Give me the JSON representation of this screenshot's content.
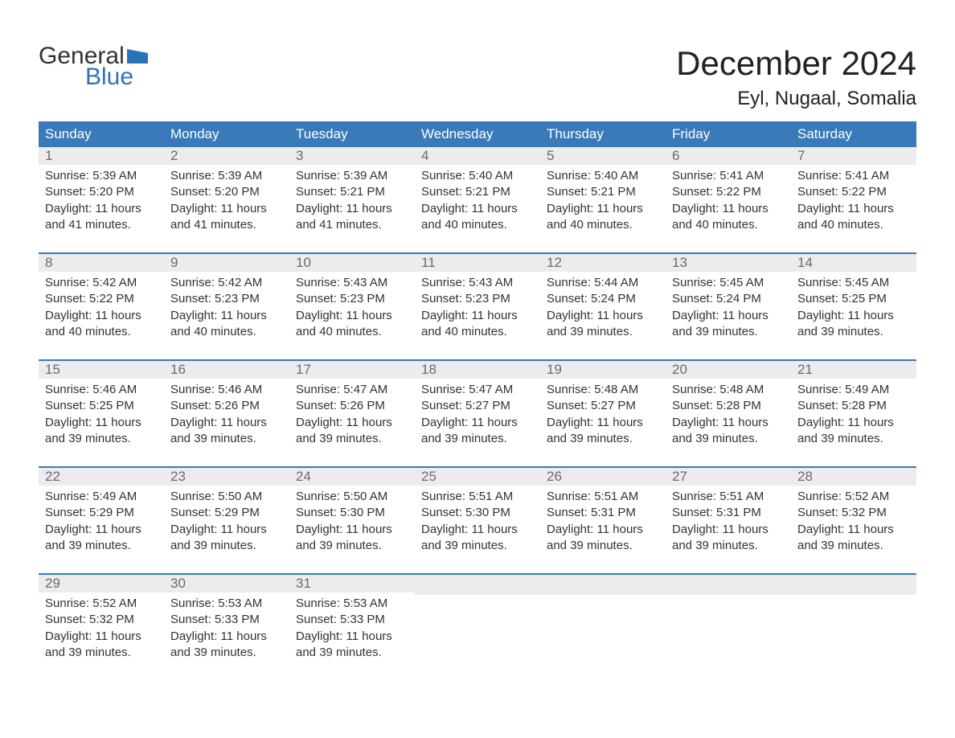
{
  "logo": {
    "word1": "General",
    "word2": "Blue",
    "flag_color": "#2b73b8",
    "text_color": "#333333"
  },
  "header": {
    "month_title": "December 2024",
    "location": "Eyl, Nugaal, Somalia"
  },
  "styling": {
    "header_bg": "#3a7ab8",
    "header_text": "#ffffff",
    "daynum_bg": "#ececec",
    "daynum_color": "#6b6b6b",
    "body_text": "#333333",
    "week_border": "#3a7ab8",
    "page_bg": "#ffffff",
    "title_fontsize": 42,
    "location_fontsize": 24,
    "header_fontsize": 17,
    "detail_fontsize": 15
  },
  "day_labels": [
    "Sunday",
    "Monday",
    "Tuesday",
    "Wednesday",
    "Thursday",
    "Friday",
    "Saturday"
  ],
  "weeks": [
    [
      {
        "n": "1",
        "sr": "Sunrise: 5:39 AM",
        "ss": "Sunset: 5:20 PM",
        "d1": "Daylight: 11 hours",
        "d2": "and 41 minutes."
      },
      {
        "n": "2",
        "sr": "Sunrise: 5:39 AM",
        "ss": "Sunset: 5:20 PM",
        "d1": "Daylight: 11 hours",
        "d2": "and 41 minutes."
      },
      {
        "n": "3",
        "sr": "Sunrise: 5:39 AM",
        "ss": "Sunset: 5:21 PM",
        "d1": "Daylight: 11 hours",
        "d2": "and 41 minutes."
      },
      {
        "n": "4",
        "sr": "Sunrise: 5:40 AM",
        "ss": "Sunset: 5:21 PM",
        "d1": "Daylight: 11 hours",
        "d2": "and 40 minutes."
      },
      {
        "n": "5",
        "sr": "Sunrise: 5:40 AM",
        "ss": "Sunset: 5:21 PM",
        "d1": "Daylight: 11 hours",
        "d2": "and 40 minutes."
      },
      {
        "n": "6",
        "sr": "Sunrise: 5:41 AM",
        "ss": "Sunset: 5:22 PM",
        "d1": "Daylight: 11 hours",
        "d2": "and 40 minutes."
      },
      {
        "n": "7",
        "sr": "Sunrise: 5:41 AM",
        "ss": "Sunset: 5:22 PM",
        "d1": "Daylight: 11 hours",
        "d2": "and 40 minutes."
      }
    ],
    [
      {
        "n": "8",
        "sr": "Sunrise: 5:42 AM",
        "ss": "Sunset: 5:22 PM",
        "d1": "Daylight: 11 hours",
        "d2": "and 40 minutes."
      },
      {
        "n": "9",
        "sr": "Sunrise: 5:42 AM",
        "ss": "Sunset: 5:23 PM",
        "d1": "Daylight: 11 hours",
        "d2": "and 40 minutes."
      },
      {
        "n": "10",
        "sr": "Sunrise: 5:43 AM",
        "ss": "Sunset: 5:23 PM",
        "d1": "Daylight: 11 hours",
        "d2": "and 40 minutes."
      },
      {
        "n": "11",
        "sr": "Sunrise: 5:43 AM",
        "ss": "Sunset: 5:23 PM",
        "d1": "Daylight: 11 hours",
        "d2": "and 40 minutes."
      },
      {
        "n": "12",
        "sr": "Sunrise: 5:44 AM",
        "ss": "Sunset: 5:24 PM",
        "d1": "Daylight: 11 hours",
        "d2": "and 39 minutes."
      },
      {
        "n": "13",
        "sr": "Sunrise: 5:45 AM",
        "ss": "Sunset: 5:24 PM",
        "d1": "Daylight: 11 hours",
        "d2": "and 39 minutes."
      },
      {
        "n": "14",
        "sr": "Sunrise: 5:45 AM",
        "ss": "Sunset: 5:25 PM",
        "d1": "Daylight: 11 hours",
        "d2": "and 39 minutes."
      }
    ],
    [
      {
        "n": "15",
        "sr": "Sunrise: 5:46 AM",
        "ss": "Sunset: 5:25 PM",
        "d1": "Daylight: 11 hours",
        "d2": "and 39 minutes."
      },
      {
        "n": "16",
        "sr": "Sunrise: 5:46 AM",
        "ss": "Sunset: 5:26 PM",
        "d1": "Daylight: 11 hours",
        "d2": "and 39 minutes."
      },
      {
        "n": "17",
        "sr": "Sunrise: 5:47 AM",
        "ss": "Sunset: 5:26 PM",
        "d1": "Daylight: 11 hours",
        "d2": "and 39 minutes."
      },
      {
        "n": "18",
        "sr": "Sunrise: 5:47 AM",
        "ss": "Sunset: 5:27 PM",
        "d1": "Daylight: 11 hours",
        "d2": "and 39 minutes."
      },
      {
        "n": "19",
        "sr": "Sunrise: 5:48 AM",
        "ss": "Sunset: 5:27 PM",
        "d1": "Daylight: 11 hours",
        "d2": "and 39 minutes."
      },
      {
        "n": "20",
        "sr": "Sunrise: 5:48 AM",
        "ss": "Sunset: 5:28 PM",
        "d1": "Daylight: 11 hours",
        "d2": "and 39 minutes."
      },
      {
        "n": "21",
        "sr": "Sunrise: 5:49 AM",
        "ss": "Sunset: 5:28 PM",
        "d1": "Daylight: 11 hours",
        "d2": "and 39 minutes."
      }
    ],
    [
      {
        "n": "22",
        "sr": "Sunrise: 5:49 AM",
        "ss": "Sunset: 5:29 PM",
        "d1": "Daylight: 11 hours",
        "d2": "and 39 minutes."
      },
      {
        "n": "23",
        "sr": "Sunrise: 5:50 AM",
        "ss": "Sunset: 5:29 PM",
        "d1": "Daylight: 11 hours",
        "d2": "and 39 minutes."
      },
      {
        "n": "24",
        "sr": "Sunrise: 5:50 AM",
        "ss": "Sunset: 5:30 PM",
        "d1": "Daylight: 11 hours",
        "d2": "and 39 minutes."
      },
      {
        "n": "25",
        "sr": "Sunrise: 5:51 AM",
        "ss": "Sunset: 5:30 PM",
        "d1": "Daylight: 11 hours",
        "d2": "and 39 minutes."
      },
      {
        "n": "26",
        "sr": "Sunrise: 5:51 AM",
        "ss": "Sunset: 5:31 PM",
        "d1": "Daylight: 11 hours",
        "d2": "and 39 minutes."
      },
      {
        "n": "27",
        "sr": "Sunrise: 5:51 AM",
        "ss": "Sunset: 5:31 PM",
        "d1": "Daylight: 11 hours",
        "d2": "and 39 minutes."
      },
      {
        "n": "28",
        "sr": "Sunrise: 5:52 AM",
        "ss": "Sunset: 5:32 PM",
        "d1": "Daylight: 11 hours",
        "d2": "and 39 minutes."
      }
    ],
    [
      {
        "n": "29",
        "sr": "Sunrise: 5:52 AM",
        "ss": "Sunset: 5:32 PM",
        "d1": "Daylight: 11 hours",
        "d2": "and 39 minutes."
      },
      {
        "n": "30",
        "sr": "Sunrise: 5:53 AM",
        "ss": "Sunset: 5:33 PM",
        "d1": "Daylight: 11 hours",
        "d2": "and 39 minutes."
      },
      {
        "n": "31",
        "sr": "Sunrise: 5:53 AM",
        "ss": "Sunset: 5:33 PM",
        "d1": "Daylight: 11 hours",
        "d2": "and 39 minutes."
      },
      null,
      null,
      null,
      null
    ]
  ]
}
